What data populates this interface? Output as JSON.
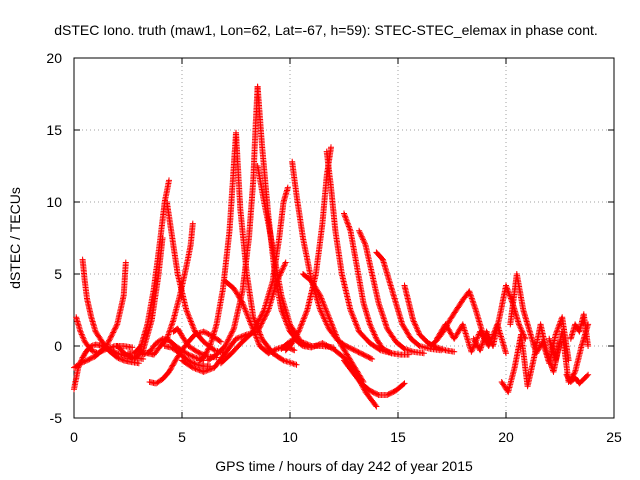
{
  "chart_data": {
    "type": "scatter",
    "title": "dSTEC Iono. truth (maw1, Lon=62, Lat=-67, h=59): STEC-STEC_elemax in phase cont.",
    "xlabel": "GPS time / hours of day 242 of year 2015",
    "ylabel": "dSTEC  / TECUs",
    "xlim": [
      0,
      25
    ],
    "ylim": [
      -5,
      20
    ],
    "xticks": [
      0,
      5,
      10,
      15,
      20,
      25
    ],
    "yticks": [
      -5,
      0,
      5,
      10,
      15,
      20
    ],
    "xtick_labels": [
      "0",
      "5",
      "10",
      "15",
      "20",
      "25"
    ],
    "ytick_labels": [
      "-5",
      "0",
      "5",
      "10",
      "15",
      "20"
    ],
    "grid": true,
    "marker": "plus",
    "colors": {
      "marker": "#ff0000",
      "grid": "#a0a0a0",
      "axis": "#000000"
    },
    "series": [
      {
        "x": [
          0.0,
          0.2,
          0.4,
          0.6,
          0.8,
          1.0,
          1.3,
          1.6,
          2.0,
          2.4,
          2.8,
          3.2
        ],
        "y": [
          -3.0,
          -1.5,
          -0.8,
          -0.3,
          0.0,
          0.1,
          0.0,
          -0.2,
          -0.5,
          -0.7,
          -0.8,
          -0.9
        ]
      },
      {
        "x": [
          0.4,
          0.5,
          0.6,
          0.8,
          1.0,
          1.3,
          1.6,
          2.0,
          2.3,
          2.6,
          3.0
        ],
        "y": [
          6.0,
          4.5,
          3.3,
          2.0,
          1.0,
          0.3,
          -0.3,
          -0.8,
          -1.0,
          -1.1,
          -1.2
        ]
      },
      {
        "x": [
          0.0,
          0.3,
          0.6,
          1.0,
          1.5,
          2.0,
          2.3,
          2.4
        ],
        "y": [
          -1.5,
          -1.2,
          -1.0,
          -0.7,
          0.0,
          1.5,
          3.5,
          5.8
        ]
      },
      {
        "x": [
          0.1,
          0.3,
          0.5,
          0.8,
          1.1,
          1.5,
          1.9,
          2.3,
          2.7
        ],
        "y": [
          2.0,
          1.0,
          0.3,
          -0.3,
          -0.5,
          -0.2,
          0.0,
          0.0,
          -0.1
        ]
      },
      {
        "x": [
          2.5,
          2.8,
          3.1,
          3.4,
          3.7,
          4.0,
          4.2,
          4.4
        ],
        "y": [
          -0.5,
          -0.5,
          0.0,
          1.5,
          4.0,
          7.5,
          10.0,
          11.5
        ]
      },
      {
        "x": [
          4.3,
          4.5,
          4.8,
          5.2,
          5.6,
          6.0,
          6.5,
          7.0
        ],
        "y": [
          10.0,
          8.0,
          5.0,
          2.5,
          1.0,
          0.3,
          -0.3,
          -0.5
        ]
      },
      {
        "x": [
          2.0,
          2.4,
          2.8,
          3.2,
          3.6,
          3.9,
          4.1
        ],
        "y": [
          0.0,
          -0.6,
          -0.9,
          -0.3,
          1.8,
          4.8,
          7.5
        ]
      },
      {
        "x": [
          3.0,
          3.2,
          3.5,
          3.8,
          4.1,
          4.4,
          4.7,
          5.0,
          5.3,
          5.6,
          6.0
        ],
        "y": [
          -0.2,
          -0.6,
          -0.4,
          0.2,
          0.5,
          0.4,
          0.0,
          -0.3,
          -0.6,
          -0.8,
          -1.0
        ]
      },
      {
        "x": [
          3.4,
          3.7,
          4.0,
          4.3,
          4.6,
          4.9,
          5.2,
          5.4,
          5.5
        ],
        "y": [
          -0.5,
          -0.6,
          0.0,
          0.5,
          1.8,
          3.5,
          5.5,
          7.0,
          8.5
        ]
      },
      {
        "x": [
          3.5,
          3.8,
          4.1,
          4.4,
          4.7,
          5.0,
          5.3,
          5.6,
          6.0,
          6.4,
          6.8
        ],
        "y": [
          -2.5,
          -2.6,
          -2.3,
          -1.8,
          -1.0,
          -0.3,
          0.3,
          0.8,
          1.0,
          0.7,
          0.3
        ]
      },
      {
        "x": [
          4.2,
          4.5,
          4.8,
          5.1,
          5.4,
          5.7,
          6.0,
          6.3
        ],
        "y": [
          0.0,
          -0.1,
          -0.4,
          -0.8,
          -1.1,
          -1.3,
          -1.4,
          -1.4
        ]
      },
      {
        "x": [
          4.6,
          4.8,
          5.0,
          5.3,
          5.7,
          6.1,
          6.6
        ],
        "y": [
          1.0,
          1.2,
          0.7,
          0.0,
          -0.4,
          -0.7,
          -0.8
        ]
      },
      {
        "x": [
          5.8,
          6.0,
          6.3,
          6.6,
          6.9,
          7.2,
          7.5
        ],
        "y": [
          -1.0,
          -0.8,
          0.0,
          1.5,
          4.0,
          8.0,
          14.8
        ]
      },
      {
        "x": [
          7.5,
          7.7,
          8.0,
          8.3,
          8.7,
          9.2,
          9.7,
          10.3
        ],
        "y": [
          14.8,
          9.5,
          5.0,
          2.0,
          0.5,
          -0.5,
          -1.0,
          -1.3
        ]
      },
      {
        "x": [
          6.2,
          6.6,
          7.0,
          7.4,
          7.8,
          8.1,
          8.3,
          8.4,
          8.5
        ],
        "y": [
          -1.0,
          -0.6,
          0.0,
          1.2,
          3.8,
          7.5,
          11.5,
          15.0,
          18.0
        ]
      },
      {
        "x": [
          8.5,
          8.7,
          9.0,
          9.3,
          9.6,
          10.0,
          10.4,
          10.8
        ],
        "y": [
          18.0,
          14.0,
          9.0,
          5.0,
          2.5,
          1.0,
          0.3,
          0.0
        ]
      },
      {
        "x": [
          8.5,
          8.8,
          9.0,
          9.3,
          9.6,
          10.0,
          10.5,
          11.0,
          11.5,
          12.0
        ],
        "y": [
          12.5,
          10.0,
          8.5,
          6.0,
          3.5,
          1.5,
          0.3,
          0.0,
          0.0,
          -0.1
        ]
      },
      {
        "x": [
          5.0,
          5.5,
          6.0,
          6.5,
          7.0,
          7.5,
          8.0,
          8.5,
          9.0,
          9.4,
          9.8
        ],
        "y": [
          -1.0,
          -1.5,
          -1.8,
          -1.5,
          -0.5,
          0.5,
          0.8,
          1.0,
          2.5,
          4.5,
          5.8
        ]
      },
      {
        "x": [
          7.0,
          7.4,
          7.8,
          8.2,
          8.6,
          9.0,
          9.4,
          9.8,
          10.2
        ],
        "y": [
          4.5,
          4.0,
          3.0,
          1.5,
          0.0,
          -0.5,
          -0.2,
          0.0,
          -0.3
        ]
      },
      {
        "x": [
          6.8,
          7.3,
          7.8,
          8.3,
          8.8,
          9.2,
          9.5,
          9.7,
          9.9
        ],
        "y": [
          -1.2,
          -0.5,
          0.3,
          1.0,
          2.5,
          4.5,
          7.5,
          10.0,
          11.0
        ]
      },
      {
        "x": [
          9.6,
          9.9,
          10.2,
          10.6,
          11.0,
          11.5,
          12.0,
          12.5,
          13.0,
          13.5,
          14.0
        ],
        "y": [
          -0.2,
          0.2,
          0.5,
          0.0,
          -0.1,
          0.2,
          -0.2,
          -0.8,
          -1.8,
          -3.2,
          -4.2
        ]
      },
      {
        "x": [
          10.1,
          10.3,
          10.6,
          11.0,
          11.4,
          11.8,
          12.2,
          12.6,
          13.0,
          13.4,
          13.8
        ],
        "y": [
          12.8,
          10.5,
          7.5,
          4.5,
          2.5,
          1.2,
          0.4,
          0.0,
          -0.3,
          -0.6,
          -0.9
        ]
      },
      {
        "x": [
          9.8,
          10.1,
          10.4,
          10.8,
          11.2,
          11.5,
          11.7,
          11.9
        ],
        "y": [
          -0.3,
          0.2,
          1.0,
          2.5,
          5.0,
          8.5,
          11.8,
          13.8
        ]
      },
      {
        "x": [
          11.7,
          11.9,
          12.1,
          12.4,
          12.8,
          13.2,
          13.7,
          14.2,
          14.7
        ],
        "y": [
          13.5,
          11.0,
          8.0,
          5.0,
          2.5,
          1.0,
          0.2,
          -0.3,
          -0.5
        ]
      },
      {
        "x": [
          10.6,
          11.0,
          11.4,
          11.8,
          12.2,
          12.6,
          13.0,
          13.4
        ],
        "y": [
          5.0,
          4.5,
          3.5,
          2.0,
          0.5,
          -0.5,
          -1.5,
          -2.5
        ]
      },
      {
        "x": [
          12.5,
          12.8,
          13.1,
          13.4,
          13.7,
          14.0,
          14.3,
          14.7,
          15.1,
          15.5
        ],
        "y": [
          9.2,
          8.0,
          5.5,
          3.0,
          1.5,
          0.5,
          -0.2,
          -0.5,
          -0.6,
          -0.6
        ]
      },
      {
        "x": [
          13.2,
          13.5,
          13.8,
          14.1,
          14.5,
          14.9,
          15.3,
          15.7,
          16.2
        ],
        "y": [
          8.0,
          7.0,
          5.0,
          3.0,
          1.2,
          0.3,
          -0.2,
          -0.4,
          -0.5
        ]
      },
      {
        "x": [
          14.0,
          14.3,
          14.6,
          14.9,
          15.2,
          15.6,
          16.0,
          16.5,
          17.0
        ],
        "y": [
          6.5,
          6.0,
          4.5,
          3.0,
          1.5,
          0.5,
          0.0,
          -0.2,
          -0.3
        ]
      },
      {
        "x": [
          12.5,
          12.9,
          13.3,
          13.7,
          14.1,
          14.5,
          14.9,
          15.3
        ],
        "y": [
          -1.0,
          -1.8,
          -2.6,
          -3.1,
          -3.4,
          -3.4,
          -3.1,
          -2.6
        ]
      },
      {
        "x": [
          15.3,
          15.5,
          15.7,
          16.0,
          16.4,
          16.8,
          17.2,
          17.6
        ],
        "y": [
          4.2,
          3.0,
          1.8,
          0.8,
          0.2,
          -0.1,
          -0.3,
          -0.4
        ]
      },
      {
        "x": [
          16.5,
          16.8,
          17.1,
          17.4,
          17.7,
          18.0,
          18.3,
          18.6,
          18.9,
          19.2
        ],
        "y": [
          0.0,
          0.4,
          1.0,
          1.8,
          2.5,
          3.2,
          3.8,
          2.5,
          1.0,
          0.3
        ]
      },
      {
        "x": [
          16.8,
          17.2,
          17.6,
          18.0,
          18.4,
          18.8,
          19.2,
          19.6,
          20.0
        ],
        "y": [
          0.5,
          1.5,
          0.5,
          1.5,
          -0.4,
          1.0,
          0.0,
          1.5,
          -0.5
        ]
      },
      {
        "x": [
          18.5,
          18.8,
          19.1,
          19.4,
          19.7,
          20.0,
          20.3,
          20.6,
          20.9
        ],
        "y": [
          0.5,
          -0.3,
          1.0,
          0.0,
          2.0,
          4.2,
          3.0,
          1.5,
          0.5
        ]
      },
      {
        "x": [
          19.8,
          20.1,
          20.4,
          20.7,
          21.0,
          21.3,
          21.6,
          21.9,
          22.2,
          22.5
        ],
        "y": [
          -2.5,
          -3.2,
          -1.5,
          0.8,
          -2.8,
          -0.8,
          1.5,
          -0.5,
          -1.8,
          0.3
        ]
      },
      {
        "x": [
          20.2,
          20.5,
          20.8,
          21.1,
          21.4,
          21.7,
          22.0,
          22.3,
          22.6,
          22.9
        ],
        "y": [
          1.5,
          5.0,
          2.5,
          1.0,
          -0.5,
          0.3,
          -1.2,
          0.8,
          2.0,
          -1.0
        ]
      },
      {
        "x": [
          22.0,
          22.3,
          22.6,
          22.9,
          23.2,
          23.5,
          23.8
        ],
        "y": [
          0.5,
          -1.0,
          1.0,
          -2.5,
          -1.8,
          0.0,
          1.5
        ]
      },
      {
        "x": [
          22.8,
          23.0,
          23.2,
          23.4,
          23.6,
          23.8
        ],
        "y": [
          -2.0,
          -2.5,
          -2.2,
          -2.6,
          -2.3,
          -2.0
        ]
      },
      {
        "x": [
          23.0,
          23.2,
          23.4,
          23.6,
          23.8
        ],
        "y": [
          0.5,
          1.5,
          1.0,
          2.2,
          0.0
        ]
      }
    ]
  }
}
